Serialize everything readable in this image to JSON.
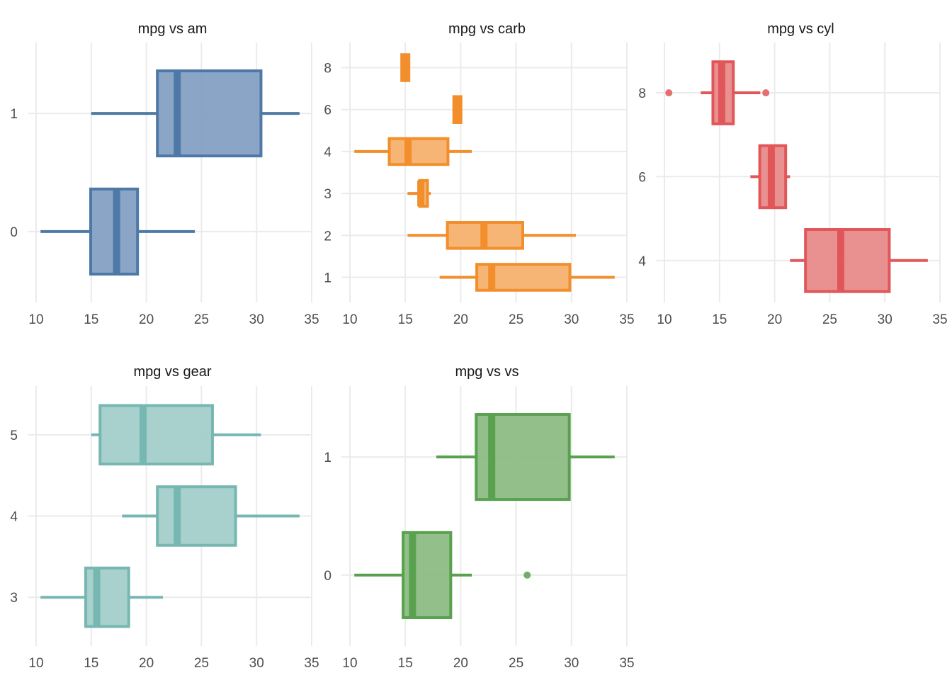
{
  "chart_data": [
    {
      "type": "boxplot",
      "orientation": "horizontal",
      "title": "mpg vs am",
      "xlabel": "",
      "ylabel": "",
      "xlim": [
        10,
        35
      ],
      "x_ticks": [
        10,
        15,
        20,
        25,
        30,
        35
      ],
      "y_scale": "categorical",
      "y_ticks": [
        "0",
        "1"
      ],
      "ylim": [
        -0.6,
        1.6
      ],
      "color": "#4E79A7",
      "fill": "#85A0C3",
      "grid": true,
      "groups": [
        {
          "label": "0",
          "y": 0,
          "whisker_low": 10.4,
          "q1": 14.95,
          "median": 17.3,
          "q3": 19.2,
          "whisker_high": 24.4,
          "outliers": []
        },
        {
          "label": "1",
          "y": 1,
          "whisker_low": 15.0,
          "q1": 21.0,
          "median": 22.8,
          "q3": 30.4,
          "whisker_high": 33.9,
          "outliers": []
        }
      ]
    },
    {
      "type": "boxplot",
      "orientation": "horizontal",
      "title": "mpg vs carb",
      "xlabel": "",
      "ylabel": "",
      "xlim": [
        10,
        35
      ],
      "x_ticks": [
        10,
        15,
        20,
        25,
        30,
        35
      ],
      "y_scale": "categorical",
      "y_ticks": [
        "1",
        "2",
        "3",
        "4",
        "6",
        "8"
      ],
      "ylim": [
        0.4,
        6.6
      ],
      "color": "#F28E2B",
      "fill": "#F5B06E",
      "grid": true,
      "groups": [
        {
          "label": "1",
          "y": 1,
          "whisker_low": 18.1,
          "q1": 21.45,
          "median": 22.8,
          "q3": 29.85,
          "whisker_high": 33.9,
          "outliers": []
        },
        {
          "label": "2",
          "y": 2,
          "whisker_low": 15.2,
          "q1": 18.8,
          "median": 22.1,
          "q3": 25.6,
          "whisker_high": 30.4,
          "outliers": []
        },
        {
          "label": "3",
          "y": 3,
          "whisker_low": 15.2,
          "q1": 16.3,
          "median": 16.4,
          "q3": 17.0,
          "whisker_high": 17.3,
          "outliers": []
        },
        {
          "label": "4",
          "y": 4,
          "whisker_low": 10.4,
          "q1": 13.55,
          "median": 15.25,
          "q3": 18.85,
          "whisker_high": 21.0,
          "outliers": []
        },
        {
          "label": "6",
          "y": 5,
          "whisker_low": 19.7,
          "q1": 19.7,
          "median": 19.7,
          "q3": 19.7,
          "whisker_high": 19.7,
          "outliers": []
        },
        {
          "label": "8",
          "y": 6,
          "whisker_low": 15.0,
          "q1": 15.0,
          "median": 15.0,
          "q3": 15.0,
          "whisker_high": 15.0,
          "outliers": []
        }
      ]
    },
    {
      "type": "boxplot",
      "orientation": "horizontal",
      "title": "mpg vs cyl",
      "xlabel": "",
      "ylabel": "",
      "xlim": [
        10,
        35
      ],
      "x_ticks": [
        10,
        15,
        20,
        25,
        30,
        35
      ],
      "y_scale": "continuous",
      "y_ticks": [
        "4",
        "6",
        "8"
      ],
      "ylim": [
        3.0,
        9.2
      ],
      "color": "#E15759",
      "fill": "#E88A8B",
      "grid": true,
      "groups": [
        {
          "label": "4",
          "y": 4,
          "whisker_low": 21.4,
          "q1": 22.8,
          "median": 26.0,
          "q3": 30.4,
          "whisker_high": 33.9,
          "outliers": []
        },
        {
          "label": "6",
          "y": 6,
          "whisker_low": 17.8,
          "q1": 18.65,
          "median": 19.7,
          "q3": 21.0,
          "whisker_high": 21.4,
          "outliers": []
        },
        {
          "label": "8",
          "y": 8,
          "whisker_low": 13.3,
          "q1": 14.4,
          "median": 15.2,
          "q3": 16.25,
          "whisker_high": 18.7,
          "outliers": [
            10.4,
            19.2
          ]
        }
      ]
    },
    {
      "type": "boxplot",
      "orientation": "horizontal",
      "title": "mpg vs gear",
      "xlabel": "",
      "ylabel": "",
      "xlim": [
        10,
        35
      ],
      "x_ticks": [
        10,
        15,
        20,
        25,
        30,
        35
      ],
      "y_scale": "categorical",
      "y_ticks": [
        "3",
        "4",
        "5"
      ],
      "ylim": [
        2.4,
        5.6
      ],
      "color": "#76B7B2",
      "fill": "#A3CECA",
      "grid": true,
      "groups": [
        {
          "label": "3",
          "y": 3,
          "whisker_low": 10.4,
          "q1": 14.5,
          "median": 15.5,
          "q3": 18.4,
          "whisker_high": 21.5,
          "outliers": []
        },
        {
          "label": "4",
          "y": 4,
          "whisker_low": 17.8,
          "q1": 21.0,
          "median": 22.8,
          "q3": 28.1,
          "whisker_high": 33.9,
          "outliers": []
        },
        {
          "label": "5",
          "y": 5,
          "whisker_low": 15.0,
          "q1": 15.8,
          "median": 19.7,
          "q3": 26.0,
          "whisker_high": 30.4,
          "outliers": []
        }
      ]
    },
    {
      "type": "boxplot",
      "orientation": "horizontal",
      "title": "mpg vs vs",
      "xlabel": "",
      "ylabel": "",
      "xlim": [
        10,
        35
      ],
      "x_ticks": [
        10,
        15,
        20,
        25,
        30,
        35
      ],
      "y_scale": "categorical",
      "y_ticks": [
        "0",
        "1"
      ],
      "ylim": [
        -0.6,
        1.6
      ],
      "color": "#59A14F",
      "fill": "#8CBC84",
      "grid": true,
      "groups": [
        {
          "label": "0",
          "y": 0,
          "whisker_low": 10.4,
          "q1": 14.8,
          "median": 15.65,
          "q3": 19.1,
          "whisker_high": 21.0,
          "outliers": [
            26.0
          ]
        },
        {
          "label": "1",
          "y": 1,
          "whisker_low": 17.8,
          "q1": 21.4,
          "median": 22.8,
          "q3": 29.8,
          "whisker_high": 33.9,
          "outliers": []
        }
      ]
    }
  ]
}
